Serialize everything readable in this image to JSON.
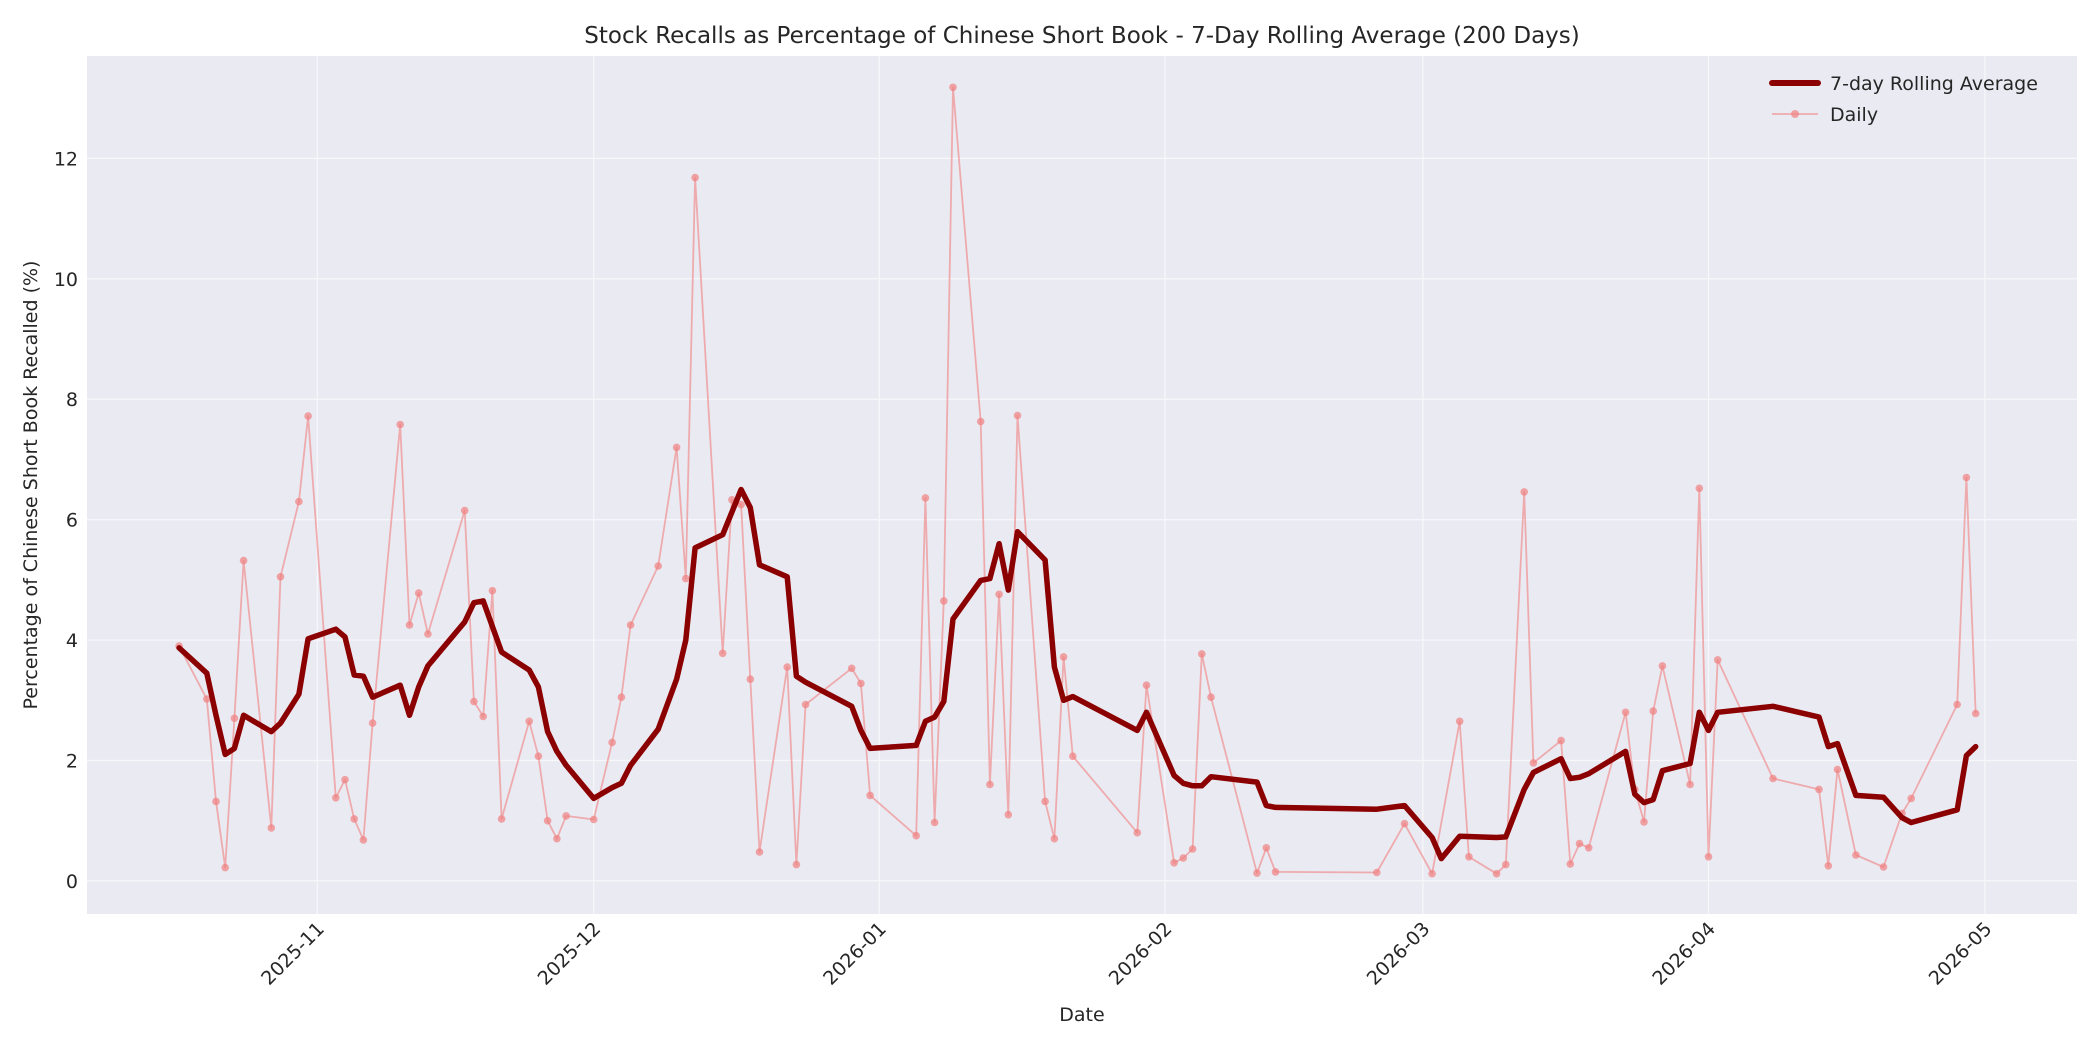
{
  "chart_data": {
    "type": "line",
    "title": "Stock Recalls as Percentage of Chinese Short Book - 7-Day Rolling Average (200 Days)",
    "xlabel": "Date",
    "ylabel": "Percentage of Chinese Short Book Recalled (%)",
    "xlim": [
      "2025-10-07",
      "2026-05-11"
    ],
    "ylim": [
      -0.55,
      13.7
    ],
    "yticks": [
      0,
      2,
      4,
      6,
      8,
      10,
      12
    ],
    "xticks": [
      {
        "date": "2025-11-01",
        "label": "2025-11"
      },
      {
        "date": "2025-12-01",
        "label": "2025-12"
      },
      {
        "date": "2026-01-01",
        "label": "2026-01"
      },
      {
        "date": "2026-02-01",
        "label": "2026-02"
      },
      {
        "date": "2026-03-01",
        "label": "2026-03"
      },
      {
        "date": "2026-04-01",
        "label": "2026-04"
      },
      {
        "date": "2026-05-01",
        "label": "2026-05"
      }
    ],
    "grid": true,
    "legend_position": "top-right",
    "colors": {
      "rolling": "#8b0000",
      "daily": "#f08080",
      "plot_bg": "#eaeaf2",
      "grid": "#f7f7fb"
    },
    "series": [
      {
        "name": "7-day Rolling Average",
        "points": [
          [
            "2025-10-17",
            3.87
          ],
          [
            "2025-10-20",
            3.45
          ],
          [
            "2025-10-21",
            2.75
          ],
          [
            "2025-10-22",
            2.1
          ],
          [
            "2025-10-23",
            2.2
          ],
          [
            "2025-10-24",
            2.75
          ],
          [
            "2025-10-27",
            2.48
          ],
          [
            "2025-10-28",
            2.62
          ],
          [
            "2025-10-30",
            3.1
          ],
          [
            "2025-10-31",
            4.02
          ],
          [
            "2025-11-03",
            4.18
          ],
          [
            "2025-11-04",
            4.05
          ],
          [
            "2025-11-05",
            3.42
          ],
          [
            "2025-11-06",
            3.4
          ],
          [
            "2025-11-07",
            3.05
          ],
          [
            "2025-11-10",
            3.25
          ],
          [
            "2025-11-11",
            2.75
          ],
          [
            "2025-11-12",
            3.22
          ],
          [
            "2025-11-13",
            3.57
          ],
          [
            "2025-11-17",
            4.3
          ],
          [
            "2025-11-18",
            4.62
          ],
          [
            "2025-11-19",
            4.65
          ],
          [
            "2025-11-21",
            3.8
          ],
          [
            "2025-11-24",
            3.5
          ],
          [
            "2025-11-25",
            3.22
          ],
          [
            "2025-11-26",
            2.48
          ],
          [
            "2025-11-27",
            2.15
          ],
          [
            "2025-11-28",
            1.92
          ],
          [
            "2025-12-01",
            1.37
          ],
          [
            "2025-12-03",
            1.55
          ],
          [
            "2025-12-04",
            1.62
          ],
          [
            "2025-12-05",
            1.92
          ],
          [
            "2025-12-08",
            2.52
          ],
          [
            "2025-12-10",
            3.35
          ],
          [
            "2025-12-11",
            4.0
          ],
          [
            "2025-12-12",
            5.53
          ],
          [
            "2025-12-15",
            5.75
          ],
          [
            "2025-12-17",
            6.5
          ],
          [
            "2025-12-18",
            6.2
          ],
          [
            "2025-12-19",
            5.25
          ],
          [
            "2025-12-22",
            5.05
          ],
          [
            "2025-12-23",
            3.4
          ],
          [
            "2025-12-24",
            3.3
          ],
          [
            "2025-12-29",
            2.9
          ],
          [
            "2025-12-30",
            2.5
          ],
          [
            "2025-12-31",
            2.2
          ],
          [
            "2026-01-05",
            2.25
          ],
          [
            "2026-01-06",
            2.65
          ],
          [
            "2026-01-07",
            2.72
          ],
          [
            "2026-01-08",
            2.98
          ],
          [
            "2026-01-09",
            4.35
          ],
          [
            "2026-01-12",
            4.99
          ],
          [
            "2026-01-13",
            5.02
          ],
          [
            "2026-01-14",
            5.6
          ],
          [
            "2026-01-15",
            4.83
          ],
          [
            "2026-01-16",
            5.8
          ],
          [
            "2026-01-19",
            5.33
          ],
          [
            "2026-01-20",
            3.55
          ],
          [
            "2026-01-21",
            3.0
          ],
          [
            "2026-01-22",
            3.06
          ],
          [
            "2026-01-29",
            2.5
          ],
          [
            "2026-01-30",
            2.8
          ],
          [
            "2026-02-02",
            1.75
          ],
          [
            "2026-02-03",
            1.62
          ],
          [
            "2026-02-04",
            1.58
          ],
          [
            "2026-02-05",
            1.58
          ],
          [
            "2026-02-06",
            1.73
          ],
          [
            "2026-02-11",
            1.64
          ],
          [
            "2026-02-12",
            1.25
          ],
          [
            "2026-02-13",
            1.22
          ],
          [
            "2026-02-24",
            1.19
          ],
          [
            "2026-02-27",
            1.25
          ],
          [
            "2026-03-02",
            0.72
          ],
          [
            "2026-03-03",
            0.37
          ],
          [
            "2026-03-05",
            0.74
          ],
          [
            "2026-03-09",
            0.72
          ],
          [
            "2026-03-10",
            0.73
          ],
          [
            "2026-03-12",
            1.52
          ],
          [
            "2026-03-13",
            1.8
          ],
          [
            "2026-03-16",
            2.03
          ],
          [
            "2026-03-17",
            1.7
          ],
          [
            "2026-03-18",
            1.72
          ],
          [
            "2026-03-19",
            1.78
          ],
          [
            "2026-03-23",
            2.15
          ],
          [
            "2026-03-24",
            1.44
          ],
          [
            "2026-03-25",
            1.3
          ],
          [
            "2026-03-26",
            1.35
          ],
          [
            "2026-03-27",
            1.83
          ],
          [
            "2026-03-30",
            1.95
          ],
          [
            "2026-03-31",
            2.8
          ],
          [
            "2026-04-01",
            2.5
          ],
          [
            "2026-04-02",
            2.8
          ],
          [
            "2026-04-08",
            2.9
          ],
          [
            "2026-04-13",
            2.72
          ],
          [
            "2026-04-14",
            2.23
          ],
          [
            "2026-04-15",
            2.28
          ],
          [
            "2026-04-17",
            1.42
          ],
          [
            "2026-04-20",
            1.39
          ],
          [
            "2026-04-22",
            1.05
          ],
          [
            "2026-04-23",
            0.97
          ],
          [
            "2026-04-28",
            1.18
          ],
          [
            "2026-04-29",
            2.08
          ],
          [
            "2026-04-30",
            2.23
          ]
        ]
      },
      {
        "name": "Daily",
        "points": [
          [
            "2025-10-17",
            3.9
          ],
          [
            "2025-10-20",
            3.02
          ],
          [
            "2025-10-21",
            1.32
          ],
          [
            "2025-10-22",
            0.22
          ],
          [
            "2025-10-23",
            2.7
          ],
          [
            "2025-10-24",
            5.32
          ],
          [
            "2025-10-27",
            0.88
          ],
          [
            "2025-10-28",
            5.05
          ],
          [
            "2025-10-30",
            6.3
          ],
          [
            "2025-10-31",
            7.72
          ],
          [
            "2025-11-03",
            1.38
          ],
          [
            "2025-11-04",
            1.68
          ],
          [
            "2025-11-05",
            1.03
          ],
          [
            "2025-11-06",
            0.68
          ],
          [
            "2025-11-07",
            2.62
          ],
          [
            "2025-11-10",
            7.58
          ],
          [
            "2025-11-11",
            4.25
          ],
          [
            "2025-11-12",
            4.78
          ],
          [
            "2025-11-13",
            4.1
          ],
          [
            "2025-11-17",
            6.15
          ],
          [
            "2025-11-18",
            2.98
          ],
          [
            "2025-11-19",
            2.73
          ],
          [
            "2025-11-20",
            4.82
          ],
          [
            "2025-11-21",
            1.03
          ],
          [
            "2025-11-24",
            2.65
          ],
          [
            "2025-11-25",
            2.07
          ],
          [
            "2025-11-26",
            1.0
          ],
          [
            "2025-11-27",
            0.7
          ],
          [
            "2025-11-28",
            1.08
          ],
          [
            "2025-12-01",
            1.02
          ],
          [
            "2025-12-03",
            2.3
          ],
          [
            "2025-12-04",
            3.05
          ],
          [
            "2025-12-05",
            4.25
          ],
          [
            "2025-12-08",
            5.23
          ],
          [
            "2025-12-10",
            7.2
          ],
          [
            "2025-12-11",
            5.02
          ],
          [
            "2025-12-12",
            11.68
          ],
          [
            "2025-12-15",
            3.78
          ],
          [
            "2025-12-16",
            6.33
          ],
          [
            "2025-12-17",
            6.25
          ],
          [
            "2025-12-18",
            3.35
          ],
          [
            "2025-12-19",
            0.48
          ],
          [
            "2025-12-22",
            3.55
          ],
          [
            "2025-12-23",
            0.27
          ],
          [
            "2025-12-24",
            2.93
          ],
          [
            "2025-12-29",
            3.53
          ],
          [
            "2025-12-30",
            3.28
          ],
          [
            "2025-12-31",
            1.42
          ],
          [
            "2026-01-05",
            0.75
          ],
          [
            "2026-01-06",
            6.36
          ],
          [
            "2026-01-07",
            0.97
          ],
          [
            "2026-01-08",
            4.65
          ],
          [
            "2026-01-09",
            13.18
          ],
          [
            "2026-01-12",
            7.63
          ],
          [
            "2026-01-13",
            1.6
          ],
          [
            "2026-01-14",
            4.76
          ],
          [
            "2026-01-15",
            1.1
          ],
          [
            "2026-01-16",
            7.73
          ],
          [
            "2026-01-19",
            1.32
          ],
          [
            "2026-01-20",
            0.7
          ],
          [
            "2026-01-21",
            3.72
          ],
          [
            "2026-01-22",
            2.07
          ],
          [
            "2026-01-29",
            0.8
          ],
          [
            "2026-01-30",
            3.25
          ],
          [
            "2026-02-02",
            0.3
          ],
          [
            "2026-02-03",
            0.38
          ],
          [
            "2026-02-04",
            0.53
          ],
          [
            "2026-02-05",
            3.77
          ],
          [
            "2026-02-06",
            3.05
          ],
          [
            "2026-02-11",
            0.13
          ],
          [
            "2026-02-12",
            0.55
          ],
          [
            "2026-02-13",
            0.15
          ],
          [
            "2026-02-24",
            0.14
          ],
          [
            "2026-02-27",
            0.95
          ],
          [
            "2026-03-02",
            0.12
          ],
          [
            "2026-03-05",
            2.65
          ],
          [
            "2026-03-06",
            0.4
          ],
          [
            "2026-03-09",
            0.12
          ],
          [
            "2026-03-10",
            0.27
          ],
          [
            "2026-03-12",
            6.46
          ],
          [
            "2026-03-13",
            1.96
          ],
          [
            "2026-03-16",
            2.33
          ],
          [
            "2026-03-17",
            0.28
          ],
          [
            "2026-03-18",
            0.62
          ],
          [
            "2026-03-19",
            0.55
          ],
          [
            "2026-03-23",
            2.8
          ],
          [
            "2026-03-24",
            1.52
          ],
          [
            "2026-03-25",
            0.98
          ],
          [
            "2026-03-26",
            2.82
          ],
          [
            "2026-03-27",
            3.57
          ],
          [
            "2026-03-30",
            1.6
          ],
          [
            "2026-03-31",
            6.52
          ],
          [
            "2026-04-01",
            0.4
          ],
          [
            "2026-04-02",
            3.67
          ],
          [
            "2026-04-08",
            1.7
          ],
          [
            "2026-04-13",
            1.52
          ],
          [
            "2026-04-14",
            0.25
          ],
          [
            "2026-04-15",
            1.85
          ],
          [
            "2026-04-17",
            0.43
          ],
          [
            "2026-04-20",
            0.23
          ],
          [
            "2026-04-22",
            1.12
          ],
          [
            "2026-04-23",
            1.37
          ],
          [
            "2026-04-28",
            2.93
          ],
          [
            "2026-04-29",
            6.7
          ],
          [
            "2026-04-30",
            2.78
          ]
        ]
      }
    ]
  }
}
